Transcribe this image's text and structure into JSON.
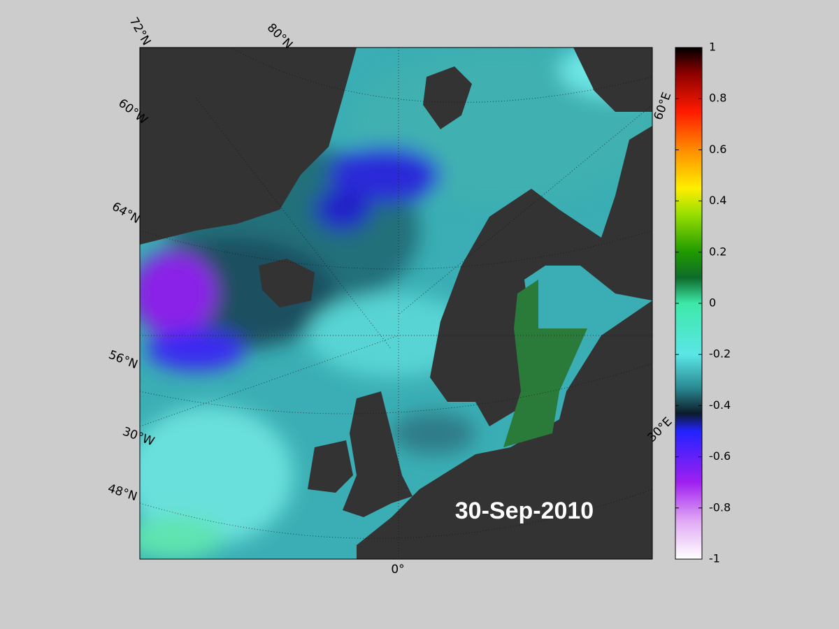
{
  "map": {
    "date": "30-Sep-2010",
    "graticule_labels": [
      "72°N",
      "80°N",
      "60°W",
      "64°N",
      "56°N",
      "30°W",
      "48°N",
      "0°",
      "30°E",
      "60°E"
    ],
    "colorbar": {
      "lim": [
        -1,
        1
      ],
      "ticks": [
        1,
        0.8,
        0.6,
        0.4,
        0.2,
        0,
        -0.2,
        -0.4,
        -0.6,
        -0.8,
        -1
      ],
      "colormap": [
        {
          "at": 1,
          "color": "#000000"
        },
        {
          "at": 0.9,
          "color": "#8b0000"
        },
        {
          "at": 0.75,
          "color": "#ff1a00"
        },
        {
          "at": 0.6,
          "color": "#ff8c00"
        },
        {
          "at": 0.45,
          "color": "#ffee00"
        },
        {
          "at": 0.35,
          "color": "#9adf00"
        },
        {
          "at": 0.2,
          "color": "#1f9a00"
        },
        {
          "at": 0.1,
          "color": "#0d6b2a"
        },
        {
          "at": 0,
          "color": "#3ee8a8"
        },
        {
          "at": -0.2,
          "color": "#5ae6e6"
        },
        {
          "at": -0.33,
          "color": "#2a8a92"
        },
        {
          "at": -0.43,
          "color": "#0c1c2a"
        },
        {
          "at": -0.5,
          "color": "#2222ff"
        },
        {
          "at": -0.7,
          "color": "#a020f0"
        },
        {
          "at": -0.85,
          "color": "#e0a8f4"
        },
        {
          "at": -1,
          "color": "#ffffff"
        }
      ]
    }
  }
}
